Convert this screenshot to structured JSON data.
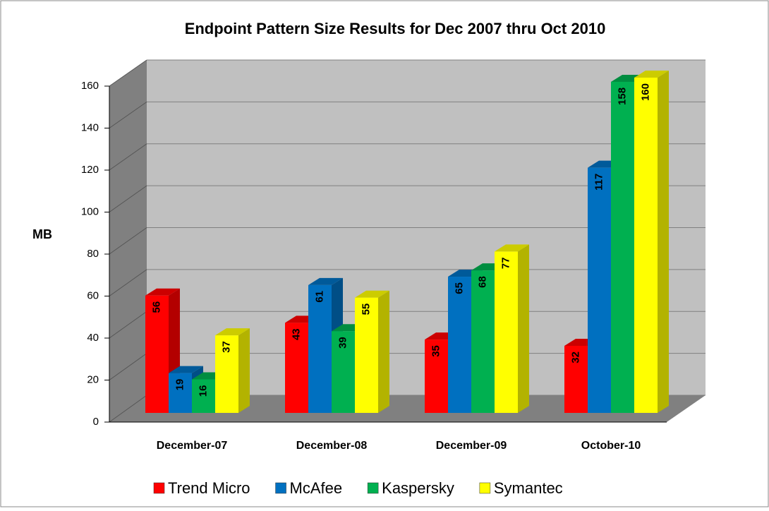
{
  "chart_data": {
    "type": "bar3d",
    "title": "Endpoint Pattern Size Results for Dec 2007 thru Oct 2010",
    "y_label": "MB",
    "categories": [
      "December-07",
      "December-08",
      "December-09",
      "October-10"
    ],
    "series": [
      {
        "name": "Trend Micro",
        "color": "#ff0000",
        "values": [
          56,
          43,
          35,
          32
        ]
      },
      {
        "name": "McAfee",
        "color": "#0070c0",
        "values": [
          19,
          61,
          65,
          117
        ]
      },
      {
        "name": "Kaspersky",
        "color": "#00b050",
        "values": [
          16,
          39,
          68,
          158
        ]
      },
      {
        "name": "Symantec",
        "color": "#ffff00",
        "values": [
          37,
          55,
          77,
          160
        ]
      }
    ],
    "ylim": [
      0,
      160
    ],
    "yticks": [
      0,
      20,
      40,
      60,
      80,
      100,
      120,
      140,
      160
    ],
    "grid": true,
    "legend": "bottom"
  }
}
